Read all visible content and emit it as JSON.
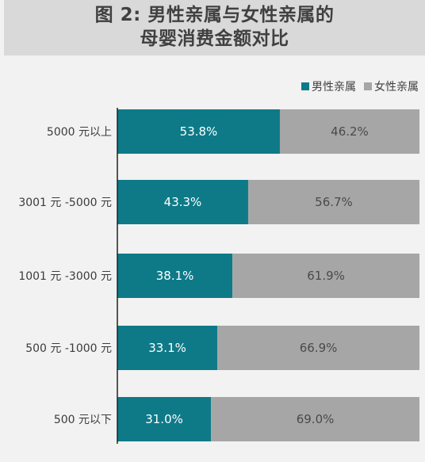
{
  "colors": {
    "male": "#0e7a88",
    "female": "#a6a6a6",
    "axis": "#222222"
  },
  "legend": {
    "male": "男性亲属",
    "female": "女性亲属"
  },
  "chart_data": {
    "type": "bar",
    "orientation": "horizontal",
    "stacked": true,
    "title": "图 2: 男性亲属与女性亲属的母婴消费金额对比",
    "title_lines": [
      "图 2: 男性亲属与女性亲属的",
      "母婴消费金额对比"
    ],
    "categories": [
      "5000 元以上",
      "3001 元 -5000 元",
      "1001 元 -3000 元",
      "500 元 -1000 元",
      "500 元以下"
    ],
    "series": [
      {
        "name": "男性亲属",
        "values": [
          53.8,
          43.3,
          38.1,
          33.1,
          31.0
        ],
        "labels": [
          "53.8%",
          "43.3%",
          "38.1%",
          "33.1%",
          "31.0%"
        ]
      },
      {
        "name": "女性亲属",
        "values": [
          46.2,
          56.7,
          61.9,
          66.9,
          69.0
        ],
        "labels": [
          "46.2%",
          "56.7%",
          "61.9%",
          "66.9%",
          "69.0%"
        ]
      }
    ],
    "xlim": [
      0,
      100
    ],
    "legend_position": "top-right",
    "grid": false
  }
}
